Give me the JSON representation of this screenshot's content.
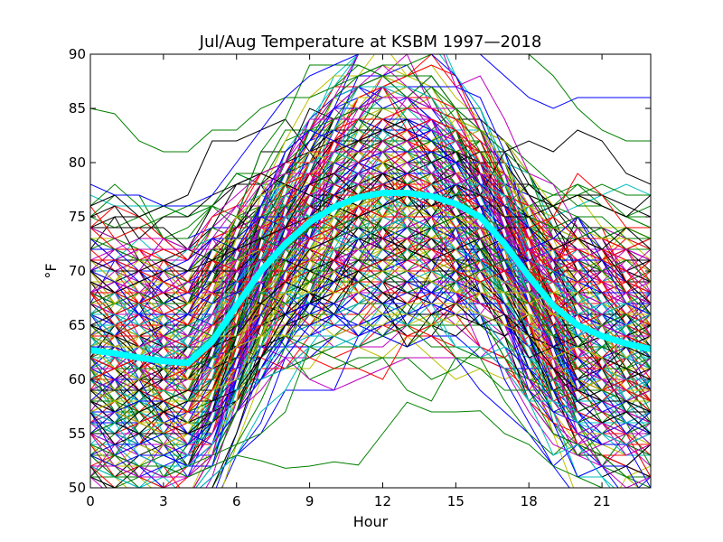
{
  "chart_data": {
    "type": "line",
    "title": "Jul/Aug Temperature at KSBM 1997—2018",
    "xlabel": "Hour",
    "ylabel": "°F",
    "xlim": [
      0,
      23
    ],
    "ylim": [
      50,
      90
    ],
    "x_ticks": [
      0,
      3,
      6,
      9,
      12,
      15,
      18,
      21
    ],
    "y_ticks": [
      50,
      55,
      60,
      65,
      70,
      75,
      80,
      85,
      90
    ],
    "x_tick_labels": [
      "0",
      "3",
      "6",
      "9",
      "12",
      "15",
      "18",
      "21"
    ],
    "y_tick_labels": [
      "50",
      "55",
      "60",
      "65",
      "70",
      "75",
      "80",
      "85",
      "90"
    ],
    "grid": false,
    "legend": "none",
    "x": [
      0,
      1,
      2,
      3,
      4,
      5,
      6,
      7,
      8,
      9,
      10,
      11,
      12,
      13,
      14,
      15,
      16,
      17,
      18,
      19,
      20,
      21,
      22,
      23
    ],
    "mean_series": {
      "color": "#00ffff",
      "values": [
        62.7,
        62.4,
        62.0,
        61.7,
        61.5,
        63.5,
        66.8,
        70.0,
        72.5,
        74.5,
        75.9,
        76.8,
        77.2,
        77.2,
        76.9,
        76.2,
        75.0,
        72.5,
        69.5,
        66.8,
        65.0,
        64.0,
        63.3,
        62.8
      ]
    },
    "daily_series_count": 1342,
    "daily_series_colors": [
      "#0000ff",
      "#008000",
      "#ff0000",
      "#00bfbf",
      "#bf00bf",
      "#bfbf00",
      "#000000"
    ],
    "daily_series_sample": [
      {
        "color": "#008000",
        "values": [
          85,
          84.5,
          82,
          81,
          81,
          83,
          83,
          85,
          86,
          86,
          87,
          88,
          89,
          89,
          90,
          90,
          90,
          90,
          90,
          88,
          85,
          83,
          82,
          82
        ]
      },
      {
        "color": "#0000ff",
        "values": [
          78,
          77,
          77,
          76,
          76,
          77,
          80,
          83,
          86,
          88,
          89,
          90,
          90,
          90,
          90,
          90,
          90,
          88,
          86,
          85,
          86,
          86,
          86,
          86
        ]
      },
      {
        "color": "#008000",
        "values": [
          54,
          53,
          52,
          52,
          51,
          52,
          53,
          52.5,
          51.8,
          52,
          52.4,
          52.1,
          55,
          57.9,
          57,
          57,
          57.1,
          55,
          54,
          52,
          51,
          50,
          50,
          50
        ]
      }
    ]
  }
}
